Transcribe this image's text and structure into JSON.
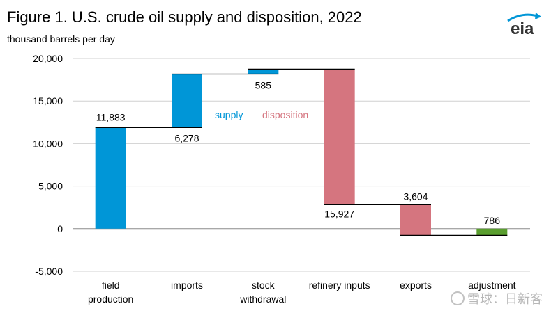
{
  "header": {
    "title": "Figure 1. U.S. crude oil supply and disposition, 2022",
    "subtitle": "thousand barrels per day"
  },
  "logo": {
    "text": "eia",
    "icon": "eia-logo-icon"
  },
  "watermark": {
    "text": "雪球：日新客",
    "icon": "snowball-icon"
  },
  "chart_data": {
    "type": "bar",
    "subtype": "waterfall",
    "title": "Figure 1. U.S. crude oil supply and disposition, 2022",
    "ylabel": "thousand barrels per day",
    "ylim": [
      -5000,
      20000
    ],
    "yticks": [
      -5000,
      0,
      5000,
      10000,
      15000,
      20000
    ],
    "ytick_labels": [
      "-5,000",
      "0",
      "5,000",
      "10,000",
      "15,000",
      "20,000"
    ],
    "grid": true,
    "legend": [
      {
        "name": "supply",
        "color": "#0096d7"
      },
      {
        "name": "disposition",
        "color": "#d5757f"
      }
    ],
    "colors": {
      "supply": "#0096d7",
      "disposition": "#d5757f",
      "adjustment": "#5a9e2f"
    },
    "bars": [
      {
        "category": "field\nproduction",
        "start": 0,
        "end": 11883,
        "label": "11,883",
        "group": "supply"
      },
      {
        "category": "imports",
        "start": 11883,
        "end": 18161,
        "label": "6,278",
        "group": "supply"
      },
      {
        "category": "stock\nwithdrawal",
        "start": 18161,
        "end": 18746,
        "label": "585",
        "group": "supply"
      },
      {
        "category": "refinery inputs",
        "start": 2819,
        "end": 18746,
        "label": "15,927",
        "group": "disposition"
      },
      {
        "category": "exports",
        "start": -785,
        "end": 2819,
        "label": "3,604",
        "group": "disposition"
      },
      {
        "category": "adjustment",
        "start": -785,
        "end": 1,
        "label": "786",
        "group": "adjustment"
      }
    ]
  }
}
